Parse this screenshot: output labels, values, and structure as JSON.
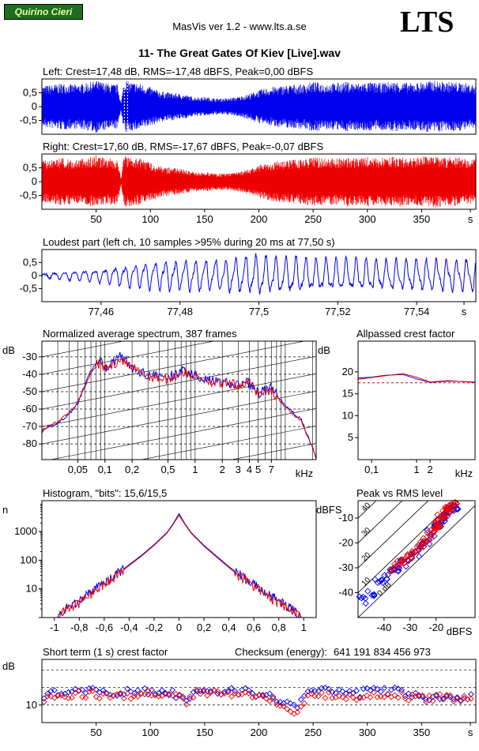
{
  "header": {
    "badge": "Quirino Cieri",
    "app": "MasVis ver 1.2 - www.lts.a.se",
    "logo": "LTS",
    "track": "11- The Great Gates Of Kiev [Live].wav"
  },
  "colors": {
    "left": "#0000ee",
    "right": "#ee0000",
    "badge_bg": "#1f6e1f"
  },
  "chart_data": [
    {
      "id": "left",
      "type": "area",
      "title": "Left: Crest=17,48 dB, RMS=-17,48 dBFS, Peak=0,00 dBFS",
      "yticks": [
        "0,5",
        "0",
        "-0,5"
      ],
      "ytick_values": [
        0.5,
        0,
        -0.5
      ],
      "ylim": [
        -1,
        1
      ],
      "xlim": [
        0,
        400
      ],
      "envelope": {
        "x": [
          0,
          10,
          20,
          30,
          40,
          50,
          60,
          70,
          73,
          75,
          77,
          80,
          90,
          100,
          110,
          120,
          130,
          140,
          150,
          160,
          170,
          180,
          190,
          200,
          210,
          220,
          230,
          240,
          250,
          260,
          270,
          280,
          290,
          300,
          310,
          320,
          330,
          340,
          350,
          360,
          370,
          380,
          390,
          400
        ],
        "peak": [
          0.75,
          0.8,
          0.85,
          0.8,
          0.85,
          0.95,
          0.85,
          0.8,
          0.1,
          0.8,
          1.0,
          0.9,
          0.85,
          0.7,
          0.55,
          0.5,
          0.45,
          0.35,
          0.35,
          0.3,
          0.3,
          0.35,
          0.45,
          0.6,
          0.7,
          0.75,
          0.8,
          0.8,
          0.9,
          0.85,
          0.85,
          0.9,
          0.85,
          0.9,
          0.85,
          0.9,
          0.9,
          0.85,
          0.9,
          0.95,
          0.9,
          0.9,
          0.85,
          0.8
        ]
      },
      "marker_x": 77.5
    },
    {
      "id": "right",
      "type": "area",
      "title": "Right: Crest=17,60 dB, RMS=-17,67 dBFS, Peak=-0,07 dBFS",
      "yticks": [
        "0,5",
        "0",
        "-0,5"
      ],
      "ytick_values": [
        0.5,
        0,
        -0.5
      ],
      "ylim": [
        -1,
        1
      ],
      "xlim": [
        0,
        400
      ],
      "xticks": [
        "50",
        "100",
        "150",
        "200",
        "250",
        "300",
        "350",
        "s"
      ],
      "xtick_values": [
        50,
        100,
        150,
        200,
        250,
        300,
        350,
        395
      ],
      "envelope": {
        "x": [
          0,
          10,
          20,
          30,
          40,
          50,
          60,
          70,
          73,
          75,
          77,
          80,
          90,
          100,
          110,
          120,
          130,
          140,
          150,
          160,
          170,
          180,
          190,
          200,
          210,
          220,
          230,
          240,
          250,
          260,
          270,
          280,
          290,
          300,
          310,
          320,
          330,
          340,
          350,
          360,
          370,
          380,
          390,
          400
        ],
        "peak": [
          0.75,
          0.8,
          0.85,
          0.8,
          0.85,
          0.95,
          0.85,
          0.8,
          0.1,
          0.8,
          0.95,
          0.9,
          0.85,
          0.7,
          0.55,
          0.5,
          0.45,
          0.35,
          0.35,
          0.3,
          0.3,
          0.35,
          0.45,
          0.6,
          0.7,
          0.75,
          0.8,
          0.8,
          0.9,
          0.85,
          0.85,
          0.9,
          0.85,
          0.9,
          0.85,
          0.9,
          0.9,
          0.85,
          0.9,
          0.95,
          0.9,
          0.9,
          0.85,
          0.8
        ]
      }
    },
    {
      "id": "loudest",
      "type": "line",
      "title": "Loudest part (left  ch, 10 samples >95% during 20 ms at 77,50 s)",
      "yticks": [
        "0,5",
        "0",
        "-0,5"
      ],
      "ytick_values": [
        0.5,
        0,
        -0.5
      ],
      "ylim": [
        -1,
        1
      ],
      "xticks": [
        "77,46",
        "77,48",
        "77,5",
        "77,52",
        "77,54",
        "s"
      ],
      "xtick_values": [
        77.46,
        77.48,
        77.5,
        77.52,
        77.54,
        77.552
      ],
      "xlim": [
        77.445,
        77.555
      ],
      "envelope": {
        "x": [
          77.445,
          77.46,
          77.47,
          77.48,
          77.49,
          77.5,
          77.51,
          77.52,
          77.53,
          77.54,
          77.555
        ],
        "amp": [
          0.1,
          0.3,
          0.55,
          0.65,
          0.7,
          0.85,
          0.75,
          0.7,
          0.65,
          0.7,
          0.7
        ]
      },
      "period_s": 0.00255
    },
    {
      "id": "spectrum",
      "type": "line",
      "log_x": true,
      "title": "Normalized average spectrum, 387 frames",
      "ylabel": "dB",
      "yticks": [
        "-30",
        "-40",
        "-50",
        "-60",
        "-70",
        "-80"
      ],
      "ytick_values": [
        -30,
        -40,
        -50,
        -60,
        -70,
        -80
      ],
      "ylim": [
        -89,
        -21
      ],
      "xlabel": "kHz",
      "xticks": [
        "0,05",
        "0,1",
        "0,2",
        "0,5",
        "1",
        "2",
        "3",
        "4",
        "5",
        "7"
      ],
      "xtick_values": [
        0.05,
        0.1,
        0.2,
        0.5,
        1,
        2,
        3,
        4,
        5,
        7
      ],
      "xlim": [
        0.02,
        22
      ],
      "series": [
        {
          "x": [
            0.02,
            0.03,
            0.04,
            0.05,
            0.06,
            0.07,
            0.08,
            0.09,
            0.1,
            0.12,
            0.15,
            0.2,
            0.3,
            0.5,
            0.7,
            1,
            1.5,
            2,
            3,
            4,
            5,
            7,
            10,
            15,
            20,
            22
          ],
          "y": [
            -73,
            -68,
            -63,
            -57,
            -46,
            -38,
            -34,
            -33,
            -36,
            -34,
            -28,
            -37,
            -40,
            -42,
            -38,
            -40,
            -44,
            -45,
            -46,
            -45,
            -51,
            -48,
            -58,
            -66,
            -82,
            -88
          ]
        },
        {
          "x": [
            0.02,
            0.03,
            0.04,
            0.05,
            0.06,
            0.07,
            0.08,
            0.09,
            0.1,
            0.12,
            0.15,
            0.2,
            0.3,
            0.5,
            0.7,
            1,
            1.5,
            2,
            3,
            4,
            5,
            7,
            10,
            15,
            20,
            22
          ],
          "y": [
            -72,
            -67,
            -62,
            -56,
            -47,
            -39,
            -35,
            -34,
            -37,
            -35,
            -31,
            -37,
            -41,
            -43,
            -39,
            -41,
            -44,
            -46,
            -46,
            -45,
            -51,
            -49,
            -59,
            -67,
            -82,
            -88
          ]
        }
      ]
    },
    {
      "id": "allpass",
      "type": "line",
      "log_x": true,
      "title": "Allpassed crest factor",
      "ylabel": "dB",
      "yticks": [
        "20",
        "15",
        "10",
        "5"
      ],
      "ytick_values": [
        20,
        15,
        10,
        5
      ],
      "ylim": [
        0,
        27
      ],
      "xlabel": "kHz",
      "xticks": [
        "0,1",
        "1",
        "2"
      ],
      "xtick_values": [
        0.1,
        1,
        2
      ],
      "xlim": [
        0.05,
        20
      ],
      "reference": 17.5,
      "series": [
        {
          "x": [
            0.05,
            0.1,
            0.2,
            0.5,
            1,
            2,
            5,
            10,
            20
          ],
          "y": [
            18.6,
            18.8,
            19.2,
            19.4,
            18.4,
            17.6,
            17.9,
            17.8,
            17.7
          ]
        },
        {
          "x": [
            0.05,
            0.1,
            0.2,
            0.5,
            1,
            2,
            5,
            10,
            20
          ],
          "y": [
            18.3,
            18.7,
            19.1,
            19.6,
            18.8,
            17.7,
            18.0,
            17.8,
            17.6
          ]
        }
      ]
    },
    {
      "id": "histogram",
      "type": "line",
      "log_y": true,
      "title": "Histogram, \"bits\": 15,6/15,5",
      "ylabel": "n",
      "yticks": [
        "1000",
        "100",
        "10"
      ],
      "ytick_values": [
        1000,
        100,
        10
      ],
      "ylim": [
        1,
        12000
      ],
      "xticks": [
        "-1",
        "-0,8",
        "-0,6",
        "-0,4",
        "-0,2",
        "0",
        "0,2",
        "0,4",
        "0,6",
        "0,8",
        "1"
      ],
      "xtick_values": [
        -1,
        -0.8,
        -0.6,
        -0.4,
        -0.2,
        0,
        0.2,
        0.4,
        0.6,
        0.8,
        1
      ],
      "xlim": [
        -1.1,
        1.1
      ],
      "series": [
        {
          "x": [
            -0.98,
            -0.9,
            -0.8,
            -0.7,
            -0.6,
            -0.5,
            -0.4,
            -0.3,
            -0.2,
            -0.1,
            -0.05,
            0,
            0.05,
            0.1,
            0.2,
            0.3,
            0.4,
            0.5,
            0.6,
            0.7,
            0.8,
            0.9,
            0.98
          ],
          "y": [
            1,
            2,
            4,
            8,
            16,
            32,
            70,
            150,
            350,
            900,
            1800,
            4200,
            1800,
            900,
            330,
            140,
            60,
            28,
            14,
            7,
            4,
            2,
            1
          ]
        },
        {
          "x": [
            -0.98,
            -0.9,
            -0.8,
            -0.7,
            -0.6,
            -0.5,
            -0.4,
            -0.3,
            -0.2,
            -0.1,
            -0.05,
            0,
            0.05,
            0.1,
            0.2,
            0.3,
            0.4,
            0.5,
            0.6,
            0.7,
            0.8,
            0.9,
            0.98
          ],
          "y": [
            1,
            2,
            3,
            7,
            15,
            30,
            65,
            140,
            330,
            850,
            1700,
            3700,
            1700,
            850,
            310,
            130,
            55,
            25,
            12,
            6,
            3,
            2,
            1
          ]
        }
      ]
    },
    {
      "id": "peakrms",
      "type": "scatter",
      "title": "Peak vs RMS level",
      "ylabel": "dBFS",
      "yticks": [
        "-10",
        "-20",
        "-30",
        "-40"
      ],
      "ytick_values": [
        -10,
        -20,
        -30,
        -40
      ],
      "ylim": [
        -50,
        -3
      ],
      "xlabel": "dBFS",
      "xticks": [
        "-40",
        "-30",
        "-20"
      ],
      "xtick_values": [
        -40,
        -30,
        -20
      ],
      "xlim": [
        -50,
        -5
      ],
      "diagonals": [
        {
          "label": "40",
          "crest": 40
        },
        {
          "label": "30",
          "crest": 30
        },
        {
          "label": "20",
          "crest": 20
        },
        {
          "label": "10",
          "crest": 10
        },
        {
          "label": "0 dB",
          "crest": 0
        }
      ],
      "series": [
        {
          "x": [
            -48,
            -45,
            -42,
            -40,
            -37,
            -35,
            -33,
            -30,
            -28,
            -26,
            -24,
            -22,
            -20,
            -19,
            -18,
            -17,
            -16,
            -15,
            -14,
            -13
          ],
          "y": [
            -43,
            -40,
            -36,
            -34,
            -31,
            -30,
            -28,
            -26,
            -24,
            -22,
            -19,
            -16,
            -14,
            -12,
            -11,
            -9,
            -8,
            -7,
            -6,
            -5
          ]
        },
        {
          "x": [
            -36,
            -34,
            -32,
            -30,
            -28,
            -26,
            -24,
            -22,
            -21,
            -20,
            -19,
            -18,
            -17,
            -16,
            -15,
            -14,
            -13
          ],
          "y": [
            -30,
            -28,
            -27,
            -25,
            -23,
            -21,
            -19,
            -17,
            -15,
            -13,
            -12,
            -10,
            -9,
            -8,
            -7,
            -6,
            -5
          ]
        }
      ]
    },
    {
      "id": "shortcrest",
      "type": "scatter",
      "title": "Short term (1 s) crest factor",
      "checksum_label": "Checksum (energy):",
      "checksum": "641 191 834 456 973",
      "ylabel": "dB",
      "yticks": [
        "10"
      ],
      "ytick_values": [
        10
      ],
      "ylim": [
        5,
        23
      ],
      "guides": [
        15,
        20,
        10
      ],
      "xticks": [
        "50",
        "100",
        "150",
        "200",
        "250",
        "300",
        "350",
        "s"
      ],
      "xtick_values": [
        50,
        100,
        150,
        200,
        250,
        300,
        350,
        395
      ],
      "xlim": [
        0,
        400
      ],
      "series": [
        {
          "x": [
            5,
            25,
            45,
            65,
            85,
            105,
            125,
            135,
            145,
            165,
            185,
            205,
            225,
            235,
            245,
            265,
            285,
            305,
            325,
            345,
            365,
            385
          ],
          "y": [
            13,
            14,
            14,
            13,
            14,
            14,
            13,
            12,
            15,
            14,
            14,
            13,
            11,
            9,
            14,
            14,
            13,
            14,
            14,
            13,
            12,
            12
          ]
        },
        {
          "x": [
            5,
            25,
            45,
            65,
            85,
            105,
            125,
            135,
            145,
            165,
            185,
            205,
            225,
            235,
            245,
            265,
            285,
            305,
            325,
            345,
            365,
            385
          ],
          "y": [
            12,
            13,
            13,
            12,
            13,
            13,
            12,
            11,
            14,
            13,
            13,
            12,
            10,
            8,
            13,
            13,
            12,
            13,
            13,
            12,
            12,
            12
          ]
        }
      ]
    }
  ]
}
